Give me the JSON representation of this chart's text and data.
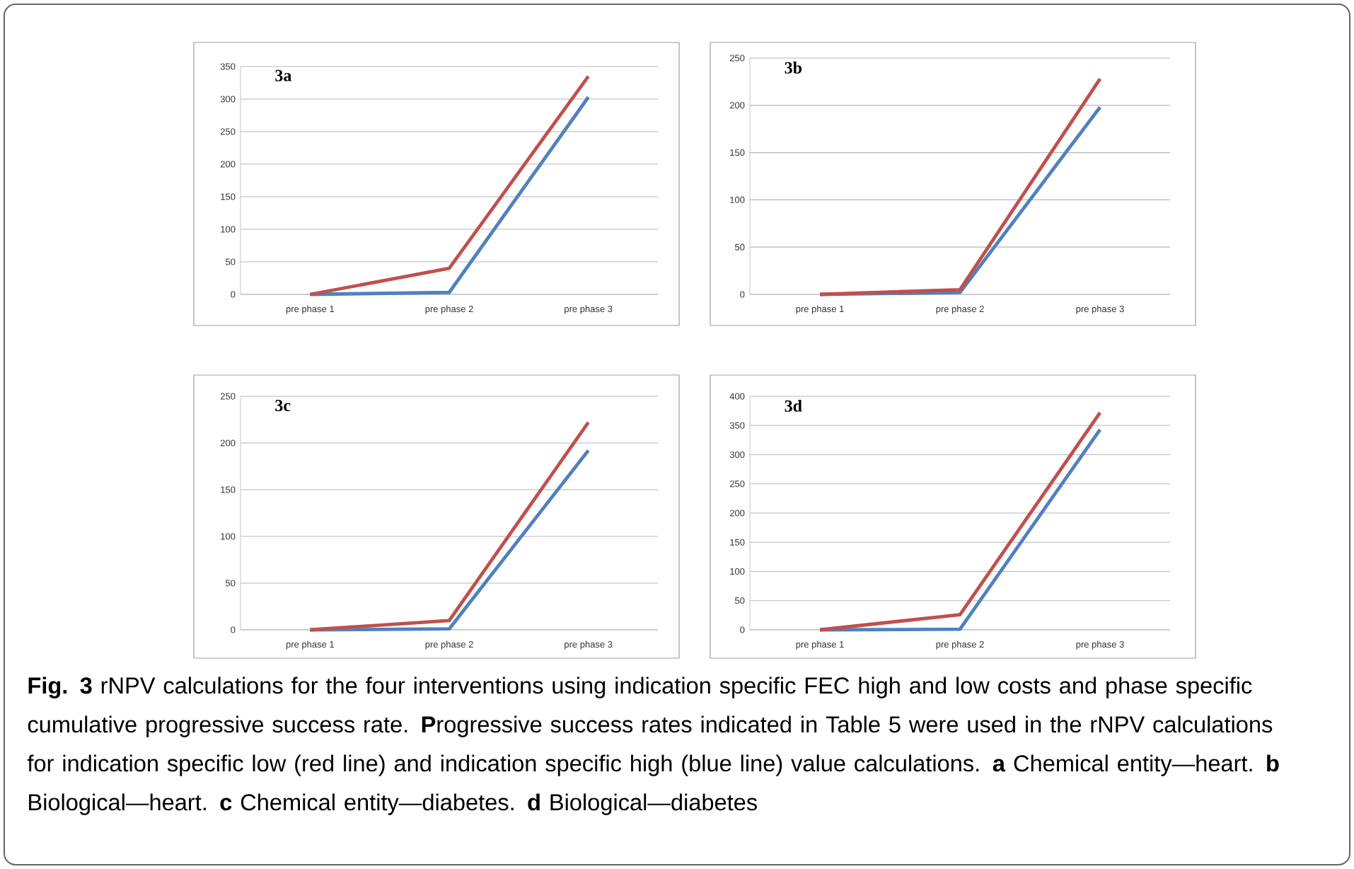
{
  "chart_data": [
    {
      "type": "line",
      "title": "3a",
      "categories": [
        "pre phase 1",
        "pre phase 2",
        "pre phase 3"
      ],
      "series": [
        {
          "color": "#4f81bd",
          "values": [
            0,
            3,
            303
          ]
        },
        {
          "color": "#c0504d",
          "values": [
            0,
            40,
            335
          ]
        }
      ],
      "ylim": [
        0,
        350
      ],
      "yticks": [
        0,
        50,
        100,
        150,
        200,
        250,
        300,
        350
      ],
      "grid": "y"
    },
    {
      "type": "line",
      "title": "3b",
      "categories": [
        "pre phase 1",
        "pre phase 2",
        "pre phase 3"
      ],
      "series": [
        {
          "color": "#4f81bd",
          "values": [
            0,
            2,
            198
          ]
        },
        {
          "color": "#c0504d",
          "values": [
            0,
            5,
            228
          ]
        }
      ],
      "ylim": [
        0,
        250
      ],
      "yticks": [
        0,
        50,
        100,
        150,
        200,
        250
      ],
      "grid": "y"
    },
    {
      "type": "line",
      "title": "3c",
      "categories": [
        "pre phase 1",
        "pre phase 2",
        "pre phase 3"
      ],
      "series": [
        {
          "color": "#4f81bd",
          "values": [
            0,
            1,
            192
          ]
        },
        {
          "color": "#c0504d",
          "values": [
            0,
            10,
            222
          ]
        }
      ],
      "ylim": [
        0,
        250
      ],
      "yticks": [
        0,
        50,
        100,
        150,
        200,
        250
      ],
      "grid": "y"
    },
    {
      "type": "line",
      "title": "3d",
      "categories": [
        "pre phase 1",
        "pre phase 2",
        "pre phase 3"
      ],
      "series": [
        {
          "color": "#4f81bd",
          "values": [
            0,
            1,
            343
          ]
        },
        {
          "color": "#c0504d",
          "values": [
            0,
            26,
            372
          ]
        }
      ],
      "ylim": [
        0,
        400
      ],
      "yticks": [
        0,
        50,
        100,
        150,
        200,
        250,
        300,
        350,
        400
      ],
      "grid": "y",
      "annotations": [
        "**Fig. 3** rNPV calculations for the four interventions using indication specific FEC high and low costs and phase specific cumulative progressive success rate. **P**rogressive success rates indicated in Table 5 were used in the rNPV calculations for indication specific low (red line) and indication specific high (blue line) value calculations. **a** Chemical entity—heart. **b** Biological—heart. **c** Chemical entity—diabetes. **d** Biological—diabetes"
      ]
    }
  ]
}
